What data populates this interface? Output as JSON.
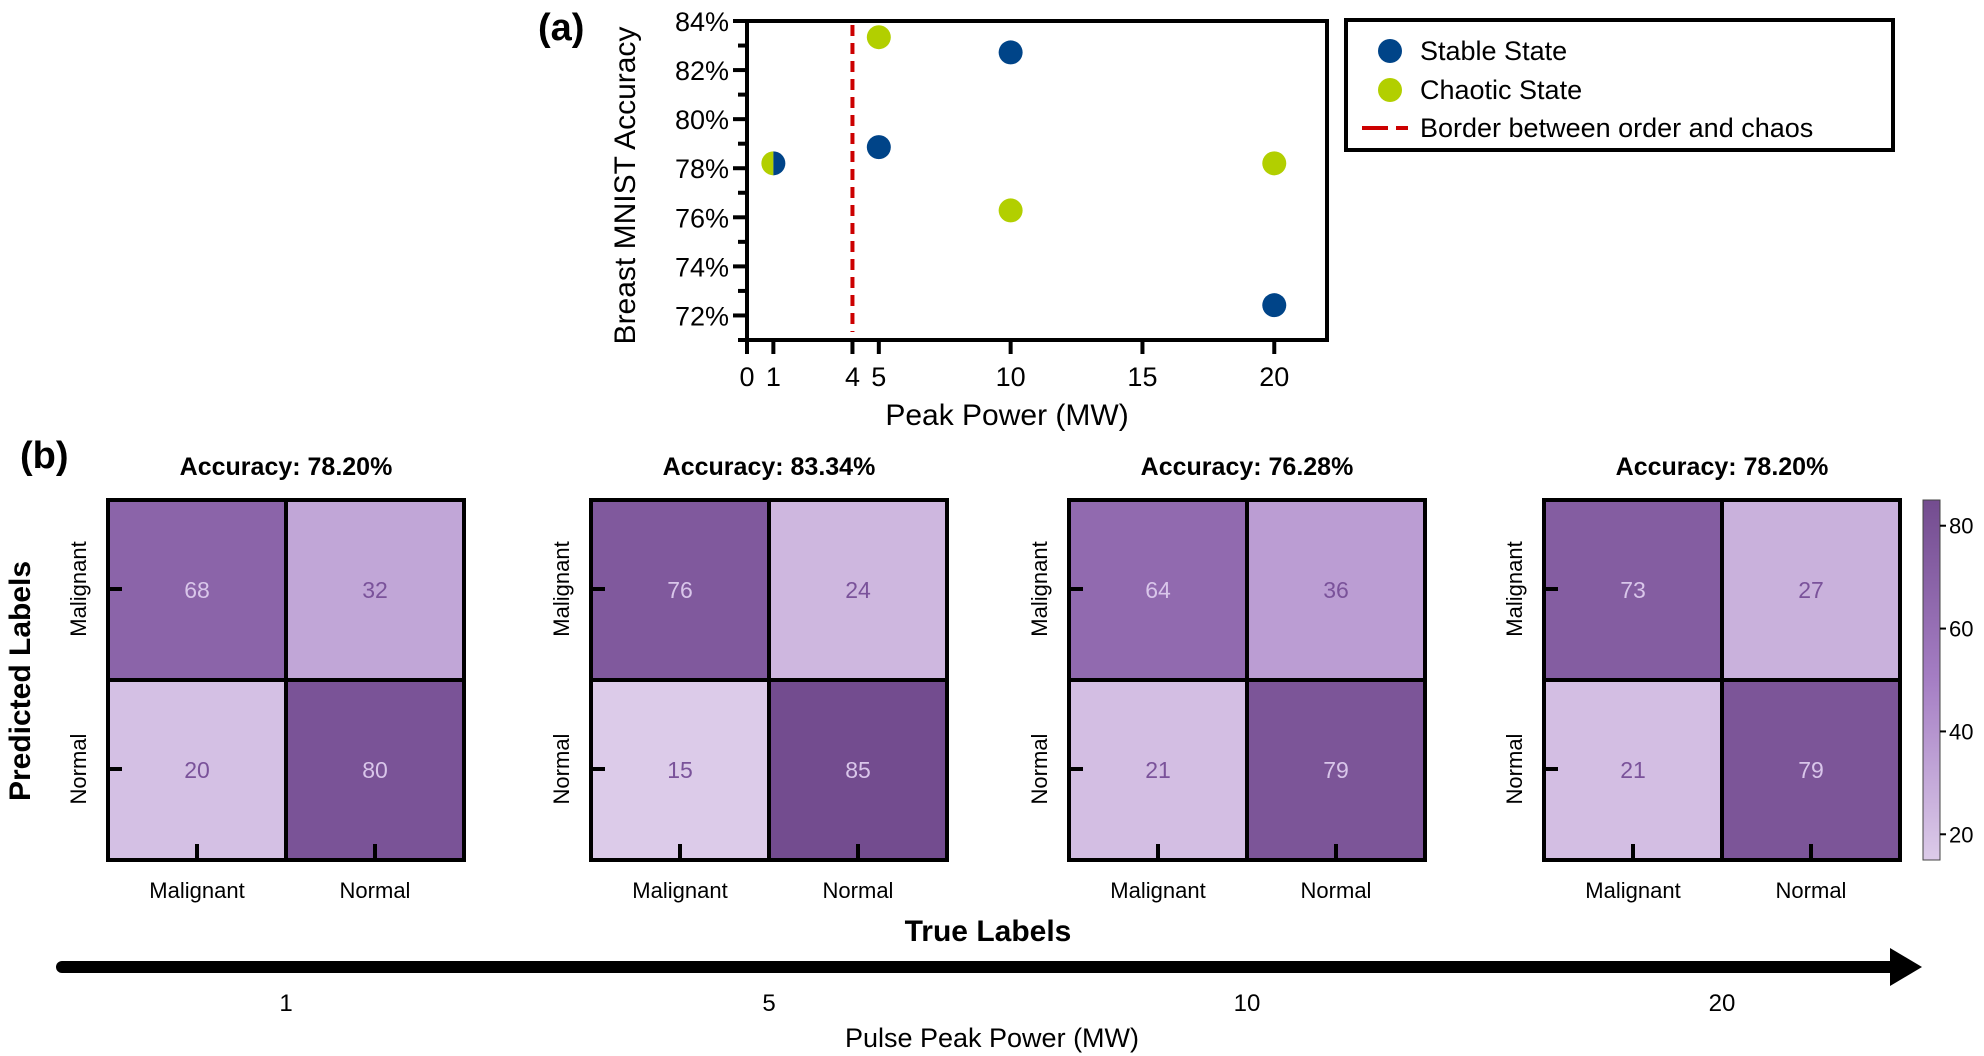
{
  "figure": {
    "panel_a_label": "(a)",
    "panel_b_label": "(b)"
  },
  "chart_data": [
    {
      "type": "scatter",
      "panel": "a",
      "title": "",
      "xlabel": "Peak Power (MW)",
      "ylabel": "Breast MNIST Accuracy",
      "xlim": [
        0,
        22
      ],
      "ylim": [
        71,
        84
      ],
      "xticks": [
        0,
        1,
        4,
        5,
        10,
        15,
        20
      ],
      "yticks": [
        72,
        74,
        76,
        78,
        80,
        82,
        84
      ],
      "yticklabels": [
        "72%",
        "74%",
        "76%",
        "78%",
        "80%",
        "82%",
        "84%"
      ],
      "y_minor_ticks": [
        71,
        73,
        75,
        77,
        79,
        81,
        83
      ],
      "grid": false,
      "legend_position": "outside-right-top",
      "series": [
        {
          "name": "Stable State",
          "color": "#004488",
          "marker": "circle",
          "x": [
            1,
            5,
            10,
            20
          ],
          "y": [
            78.2,
            78.86,
            82.72,
            72.42
          ]
        },
        {
          "name": "Chaotic State",
          "color": "#b2cf00",
          "marker": "circle",
          "x": [
            1,
            5,
            10,
            20
          ],
          "y": [
            78.2,
            83.34,
            76.28,
            78.2
          ]
        }
      ],
      "vlines": [
        {
          "name": "Border between order and chaos",
          "x": 4,
          "color": "#cc0000",
          "style": "dashed"
        }
      ],
      "annotations": [
        "At 1 MW the Stable and Chaotic markers coincide (half-filled marker)"
      ]
    },
    {
      "type": "heatmap",
      "panel": "b",
      "xlabel": "True Labels",
      "ylabel": "Predicted Labels",
      "row_labels": [
        "Malignant",
        "Normal"
      ],
      "col_labels": [
        "Malignant",
        "Normal"
      ],
      "colorbar": {
        "min": 15,
        "max": 85,
        "ticks": [
          20,
          40,
          60,
          80
        ],
        "colors": [
          "#dccbe9",
          "#a57ec4",
          "#734c8f"
        ]
      },
      "matrices": [
        {
          "power_MW": "1",
          "title": "Accuracy: 78.20%",
          "values": [
            [
              68,
              32
            ],
            [
              20,
              80
            ]
          ]
        },
        {
          "power_MW": "5",
          "title": "Accuracy: 83.34%",
          "values": [
            [
              76,
              24
            ],
            [
              15,
              85
            ]
          ]
        },
        {
          "power_MW": "10",
          "title": "Accuracy: 76.28%",
          "values": [
            [
              64,
              36
            ],
            [
              21,
              79
            ]
          ]
        },
        {
          "power_MW": "20",
          "title": "Accuracy: 78.20%",
          "values": [
            [
              73,
              27
            ],
            [
              21,
              79
            ]
          ]
        }
      ],
      "bottom_axis": {
        "label": "Pulse Peak Power (MW)",
        "ticks": [
          "1",
          "5",
          "10",
          "20"
        ]
      }
    }
  ]
}
